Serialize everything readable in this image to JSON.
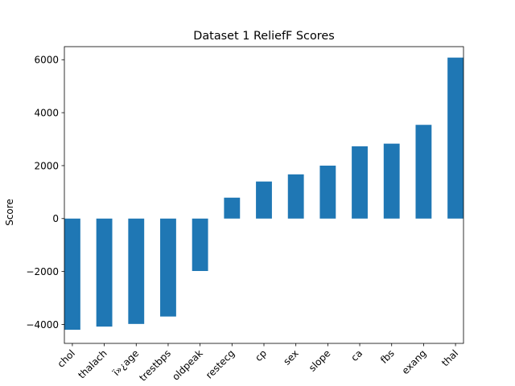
{
  "chart_data": {
    "type": "bar",
    "title": "Dataset 1 ReliefF Scores",
    "xlabel": "",
    "ylabel": "Score",
    "categories": [
      "chol",
      "thalach",
      "ï»¿age",
      "trestbps",
      "oldpeak",
      "restecg",
      "cp",
      "sex",
      "slope",
      "ca",
      "fbs",
      "exang",
      "thal"
    ],
    "values": [
      -4200,
      -4080,
      -3980,
      -3700,
      -1980,
      790,
      1400,
      1670,
      2000,
      2730,
      2830,
      3540,
      6080
    ],
    "yticks": [
      -4000,
      -2000,
      0,
      2000,
      4000,
      6000
    ],
    "ylim": [
      -4714,
      6494
    ],
    "grid": false,
    "legend": "none",
    "bar_color": "#1f77b4"
  }
}
